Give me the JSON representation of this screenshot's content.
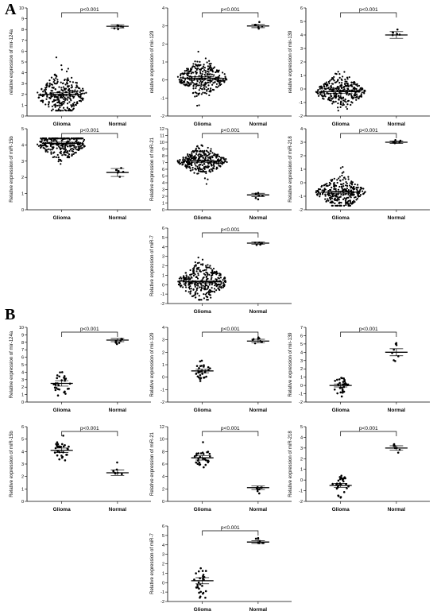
{
  "figure": {
    "panels": [
      {
        "letter": "A"
      },
      {
        "letter": "B"
      }
    ]
  },
  "chart_data": [
    {
      "type": "scatter",
      "panel": "A",
      "ylabel": "relative expression of mir-124a",
      "ylim": [
        0,
        10
      ],
      "yticks": [
        0,
        1,
        2,
        3,
        4,
        5,
        6,
        7,
        8,
        9,
        10
      ],
      "categories": [
        "Glioma",
        "Normal"
      ],
      "n": [
        300,
        6
      ],
      "means": [
        2.0,
        8.3
      ],
      "sds": [
        0.9,
        0.15
      ],
      "annotation": "p<0.001"
    },
    {
      "type": "scatter",
      "panel": "A",
      "ylabel": "relative expression of mir-129",
      "ylim": [
        -2,
        4
      ],
      "yticks": [
        -2,
        -1,
        0,
        1,
        2,
        3,
        4
      ],
      "categories": [
        "Glioma",
        "Normal"
      ],
      "n": [
        300,
        6
      ],
      "means": [
        0.1,
        3.0
      ],
      "sds": [
        0.45,
        0.12
      ],
      "annotation": "p<0.001"
    },
    {
      "type": "scatter",
      "panel": "A",
      "ylabel": "relative expression of mir-139",
      "ylim": [
        -2,
        6
      ],
      "yticks": [
        -2,
        -1,
        0,
        1,
        2,
        3,
        4,
        5,
        6
      ],
      "categories": [
        "Glioma",
        "Normal"
      ],
      "n": [
        300,
        6
      ],
      "means": [
        -0.2,
        4.0
      ],
      "sds": [
        0.55,
        0.3
      ],
      "annotation": "p<0.001"
    },
    {
      "type": "scatter",
      "panel": "A",
      "ylabel": "Relative expression of miR-15b",
      "ylim": [
        0,
        5
      ],
      "yticks": [
        0,
        1,
        2,
        3,
        4,
        5
      ],
      "categories": [
        "Glioma",
        "Normal"
      ],
      "n": [
        300,
        6
      ],
      "means": [
        4.1,
        2.3
      ],
      "sds": [
        0.45,
        0.3
      ],
      "annotation": "p<0.001"
    },
    {
      "type": "scatter",
      "panel": "A",
      "ylabel": "Relative expression of miR-21",
      "ylim": [
        0,
        12
      ],
      "yticks": [
        0,
        1,
        2,
        3,
        4,
        5,
        6,
        7,
        8,
        9,
        10,
        11,
        12
      ],
      "categories": [
        "Glioma",
        "Normal"
      ],
      "n": [
        300,
        6
      ],
      "means": [
        7.2,
        2.2
      ],
      "sds": [
        0.9,
        0.3
      ],
      "annotation": "p<0.001"
    },
    {
      "type": "scatter",
      "panel": "A",
      "ylabel": "Relative expression of miR-218",
      "ylim": [
        -2,
        4
      ],
      "yticks": [
        -2,
        -1,
        0,
        1,
        2,
        3,
        4
      ],
      "categories": [
        "Glioma",
        "Normal"
      ],
      "n": [
        300,
        6
      ],
      "means": [
        -0.7,
        3.0
      ],
      "sds": [
        0.55,
        0.1
      ],
      "annotation": "p<0.001"
    },
    {
      "type": "scatter",
      "panel": "A",
      "ylabel": "Relative expression of miR-7",
      "ylim": [
        -2,
        6
      ],
      "yticks": [
        -2,
        -1,
        0,
        1,
        2,
        3,
        4,
        5,
        6
      ],
      "categories": [
        "Glioma",
        "Normal"
      ],
      "n": [
        300,
        6
      ],
      "means": [
        0.3,
        4.4
      ],
      "sds": [
        0.9,
        0.1
      ],
      "annotation": "p<0.001"
    },
    {
      "type": "scatter",
      "panel": "B",
      "ylabel": "Relative expression of mir-124a",
      "ylim": [
        0,
        10
      ],
      "yticks": [
        0,
        1,
        2,
        3,
        4,
        5,
        6,
        7,
        8,
        9,
        10
      ],
      "categories": [
        "Glioma",
        "Normal"
      ],
      "n": [
        30,
        8
      ],
      "means": [
        2.5,
        8.3
      ],
      "sds": [
        1.0,
        0.3
      ],
      "annotation": "p<0.001"
    },
    {
      "type": "scatter",
      "panel": "B",
      "ylabel": "Relative expression of mir-129",
      "ylim": [
        -2,
        4
      ],
      "yticks": [
        -2,
        -1,
        0,
        1,
        2,
        3,
        4
      ],
      "categories": [
        "Glioma",
        "Normal"
      ],
      "n": [
        30,
        8
      ],
      "means": [
        0.5,
        2.9
      ],
      "sds": [
        0.4,
        0.2
      ],
      "annotation": "p<0.001"
    },
    {
      "type": "scatter",
      "panel": "B",
      "ylabel": "Relative expression of mir-139",
      "ylim": [
        -2,
        7
      ],
      "yticks": [
        -2,
        -1,
        0,
        1,
        2,
        3,
        4,
        5,
        6,
        7
      ],
      "categories": [
        "Glioma",
        "Normal"
      ],
      "n": [
        30,
        8
      ],
      "means": [
        0.0,
        4.0
      ],
      "sds": [
        0.5,
        0.6
      ],
      "annotation": "p<0.001"
    },
    {
      "type": "scatter",
      "panel": "B",
      "ylabel": "Relative expression of miR-15b",
      "ylim": [
        0,
        6
      ],
      "yticks": [
        0,
        1,
        2,
        3,
        4,
        5,
        6
      ],
      "categories": [
        "Glioma",
        "Normal"
      ],
      "n": [
        30,
        8
      ],
      "means": [
        4.1,
        2.3
      ],
      "sds": [
        0.5,
        0.3
      ],
      "annotation": "p<0.001"
    },
    {
      "type": "scatter",
      "panel": "B",
      "ylabel": "Relative expression of miR-21",
      "ylim": [
        0,
        12
      ],
      "yticks": [
        0,
        2,
        4,
        6,
        8,
        10,
        12
      ],
      "categories": [
        "Glioma",
        "Normal"
      ],
      "n": [
        30,
        8
      ],
      "means": [
        7.0,
        2.2
      ],
      "sds": [
        1.0,
        0.4
      ],
      "annotation": "p<0.001"
    },
    {
      "type": "scatter",
      "panel": "B",
      "ylabel": "Relative expression of miR-218",
      "ylim": [
        -2,
        5
      ],
      "yticks": [
        -2,
        -1,
        0,
        1,
        2,
        3,
        4,
        5
      ],
      "categories": [
        "Glioma",
        "Normal"
      ],
      "n": [
        30,
        8
      ],
      "means": [
        -0.5,
        3.0
      ],
      "sds": [
        0.5,
        0.3
      ],
      "annotation": "p<0.001"
    },
    {
      "type": "scatter",
      "panel": "B",
      "ylabel": "Relative expression of miR-7",
      "ylim": [
        -2,
        6
      ],
      "yticks": [
        -2,
        -1,
        0,
        1,
        2,
        3,
        4,
        5,
        6
      ],
      "categories": [
        "Glioma",
        "Normal"
      ],
      "n": [
        30,
        8
      ],
      "means": [
        0.2,
        4.3
      ],
      "sds": [
        0.9,
        0.2
      ],
      "annotation": "p<0.001"
    }
  ]
}
